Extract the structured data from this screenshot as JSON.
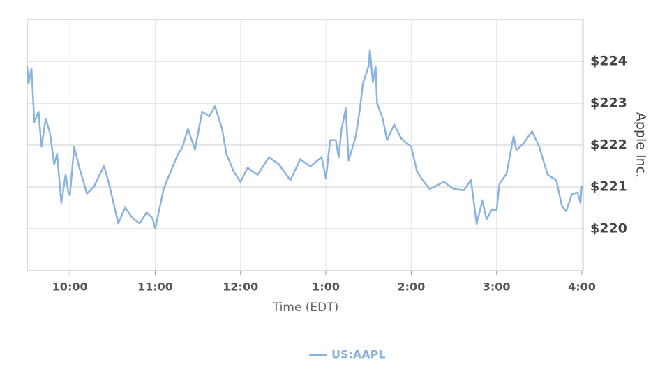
{
  "chart_data": {
    "type": "line",
    "x_label": "Time (EDT)",
    "y_label": "Apple Inc.",
    "x": [
      570,
      571,
      573,
      575,
      578,
      580,
      583,
      586,
      589,
      591,
      594,
      597,
      599,
      600,
      603,
      607,
      612,
      617,
      624,
      628,
      634,
      639,
      644,
      649,
      654,
      658,
      660,
      666,
      671,
      676,
      679,
      683,
      688,
      693,
      698,
      702,
      707,
      710,
      715,
      720,
      725,
      732,
      740,
      747,
      755,
      762,
      769,
      777,
      780,
      783,
      787,
      789,
      791,
      794,
      796,
      801,
      804,
      806,
      810,
      811,
      813,
      815,
      816,
      820,
      823,
      828,
      833,
      840,
      844,
      848,
      853,
      863,
      870,
      877,
      882,
      886,
      890,
      893,
      897,
      900,
      902,
      907,
      912,
      914,
      919,
      925,
      930,
      936,
      942,
      946,
      949,
      953,
      957,
      959,
      960
    ],
    "series": [
      {
        "name": "US:AAPL",
        "color": "#8ab4de",
        "values": [
          223.88,
          223.47,
          223.83,
          222.55,
          222.8,
          221.96,
          222.63,
          222.29,
          221.54,
          221.79,
          220.62,
          221.29,
          220.87,
          220.8,
          221.96,
          221.42,
          220.84,
          221.01,
          221.51,
          221.01,
          220.13,
          220.51,
          220.26,
          220.13,
          220.39,
          220.26,
          220.0,
          220.96,
          221.38,
          221.79,
          221.93,
          222.39,
          221.89,
          222.8,
          222.68,
          222.93,
          222.39,
          221.79,
          221.38,
          221.12,
          221.46,
          221.29,
          221.71,
          221.54,
          221.16,
          221.66,
          221.49,
          221.71,
          221.2,
          222.12,
          222.12,
          221.71,
          222.38,
          222.88,
          221.63,
          222.21,
          222.88,
          223.47,
          223.88,
          224.27,
          223.5,
          223.88,
          223.0,
          222.63,
          222.12,
          222.49,
          222.16,
          221.96,
          221.38,
          221.16,
          220.95,
          221.12,
          220.95,
          220.92,
          221.17,
          220.12,
          220.67,
          220.23,
          220.47,
          220.43,
          221.07,
          221.31,
          222.21,
          221.88,
          222.04,
          222.33,
          221.96,
          221.29,
          221.16,
          220.54,
          220.42,
          220.83,
          220.87,
          220.62,
          221.04
        ]
      }
    ],
    "xlim": [
      570,
      961
    ],
    "xticks": [
      {
        "value": 600,
        "label": "10:00"
      },
      {
        "value": 660,
        "label": "11:00"
      },
      {
        "value": 720,
        "label": "12:00"
      },
      {
        "value": 780,
        "label": "1:00"
      },
      {
        "value": 840,
        "label": "2:00"
      },
      {
        "value": 900,
        "label": "3:00"
      },
      {
        "value": 960,
        "label": "4:00"
      }
    ],
    "ylim": [
      219,
      225
    ],
    "yticks": [
      {
        "value": 220,
        "label": "$220"
      },
      {
        "value": 221,
        "label": "$221"
      },
      {
        "value": 222,
        "label": "$222"
      },
      {
        "value": 223,
        "label": "$223"
      },
      {
        "value": 224,
        "label": "$224"
      }
    ],
    "grid": true,
    "legend": "bottom"
  }
}
